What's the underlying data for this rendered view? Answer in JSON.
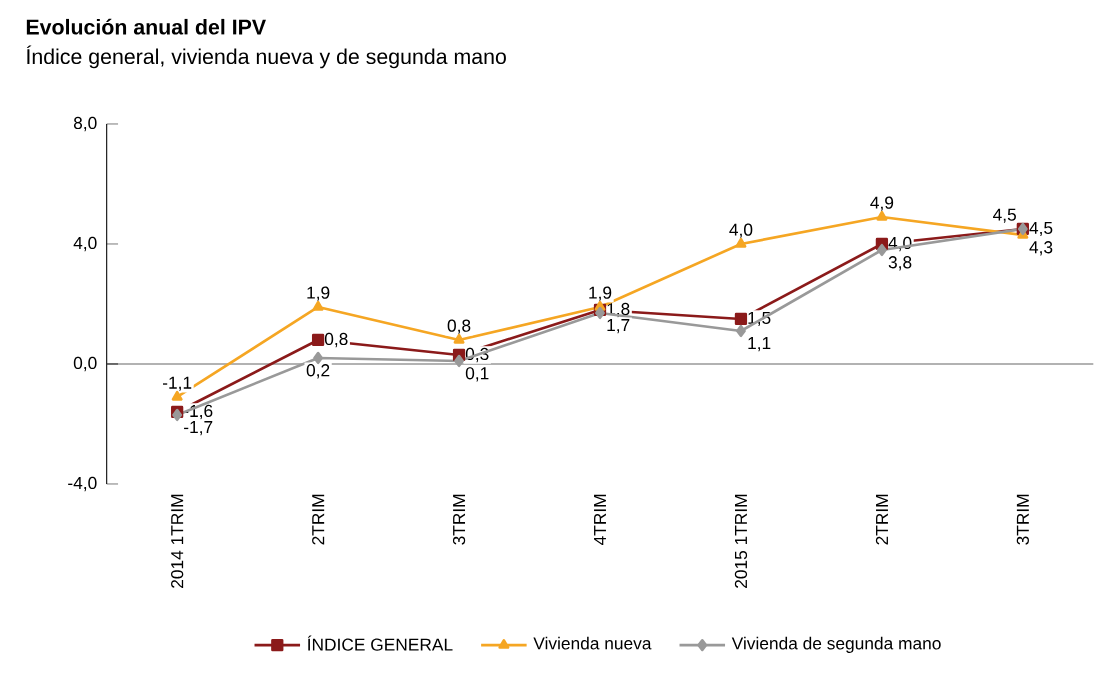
{
  "chart_data": {
    "type": "line",
    "title": "Evolución anual del IPV",
    "subtitle": "Índice general, vivienda nueva y de segunda mano",
    "categories": [
      "2014 1TRIM",
      "2TRIM",
      "3TRIM",
      "4TRIM",
      "2015 1TRIM",
      "2TRIM",
      "3TRIM"
    ],
    "series": [
      {
        "name": "ÍNDICE GENERAL",
        "color": "#8b1a1a",
        "marker": "square",
        "values": [
          -1.6,
          0.8,
          0.3,
          1.8,
          1.5,
          4.0,
          4.5
        ],
        "value_labels": [
          "-1,6",
          "0,8",
          "0,3",
          "1,8",
          "1,5",
          "4,0",
          "4,5"
        ]
      },
      {
        "name": "Vivienda nueva",
        "color": "#f5a623",
        "marker": "triangle",
        "values": [
          -1.1,
          1.9,
          0.8,
          1.9,
          4.0,
          4.9,
          4.3
        ],
        "value_labels": [
          "-1,1",
          "1,9",
          "0,8",
          "1,9",
          "4,0",
          "4,9",
          "4,3"
        ]
      },
      {
        "name": "Vivienda de segunda mano",
        "color": "#999999",
        "marker": "diamond",
        "values": [
          -1.7,
          0.2,
          0.1,
          1.7,
          1.1,
          3.8,
          4.5
        ],
        "value_labels": [
          "-1,7",
          "0,2",
          "0,1",
          "1,7",
          "1,1",
          "3,8",
          "4,5"
        ]
      }
    ],
    "ylim": [
      -4,
      8
    ],
    "yticks": [
      {
        "value": -4,
        "label": "-4,0"
      },
      {
        "value": 0,
        "label": "0,0"
      },
      {
        "value": 4,
        "label": "4,0"
      },
      {
        "value": 8,
        "label": "8,0"
      }
    ],
    "legend": "bottom"
  }
}
